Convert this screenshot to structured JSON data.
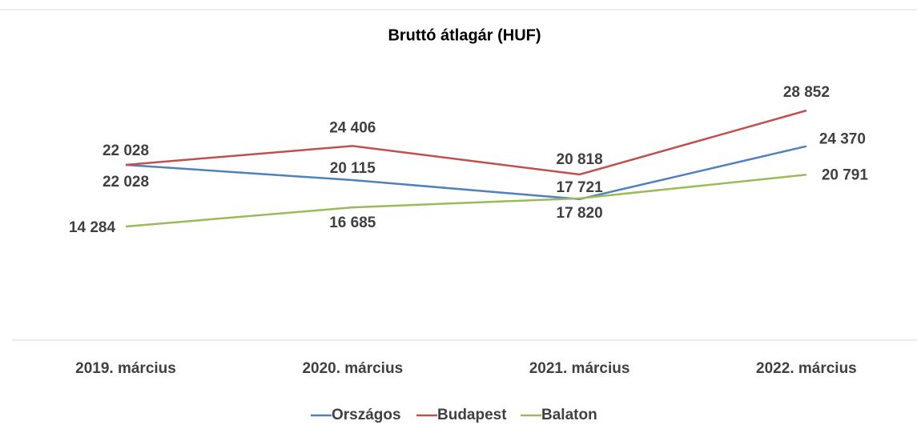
{
  "chart_data": {
    "type": "line",
    "title": "Bruttó átlagár (HUF)",
    "categories": [
      "2019. március",
      "2020. március",
      "2021. március",
      "2022. március"
    ],
    "ylim": [
      0,
      35000
    ],
    "series": [
      {
        "name": "Országos",
        "color": "#4f81bd",
        "values": [
          22028,
          20115,
          17721,
          24370
        ],
        "value_labels": [
          "22 028",
          "20 115",
          "17 721",
          "24 370"
        ]
      },
      {
        "name": "Budapest",
        "color": "#c0504d",
        "values": [
          22028,
          24406,
          20818,
          28852
        ],
        "value_labels": [
          "22 028",
          "24 406",
          "20 818",
          "28 852"
        ]
      },
      {
        "name": "Balaton",
        "color": "#9bbb59",
        "values": [
          14284,
          16685,
          17820,
          20791
        ],
        "value_labels": [
          "14 284",
          "16 685",
          "17 820",
          "20 791"
        ]
      }
    ],
    "legend": "bottom"
  }
}
